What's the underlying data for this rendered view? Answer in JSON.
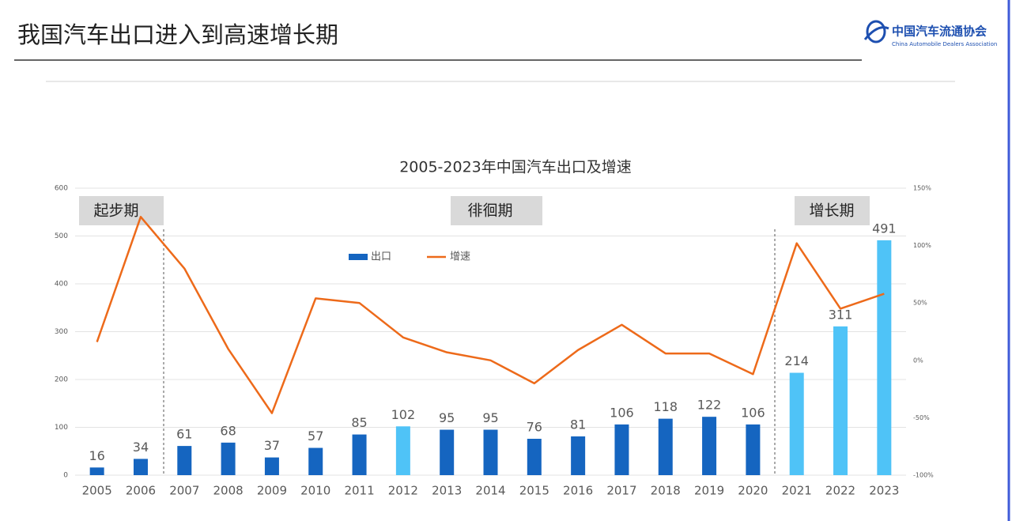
{
  "header": {
    "title": "我国汽车出口进入到高速增长期",
    "logo_cn": "中国汽车流通协会",
    "logo_en": "China Automobile Dealers Association"
  },
  "chart_data": {
    "type": "bar-line",
    "title": "2005-2023年中国汽车出口及增速",
    "categories": [
      "2005",
      "2006",
      "2007",
      "2008",
      "2009",
      "2010",
      "2011",
      "2012",
      "2013",
      "2014",
      "2015",
      "2016",
      "2017",
      "2018",
      "2019",
      "2020",
      "2021",
      "2022",
      "2023"
    ],
    "series": [
      {
        "name": "出口",
        "type": "bar",
        "color": "#1565c0",
        "bar_colors": [
          "#1565c0",
          "#1565c0",
          "#1565c0",
          "#1565c0",
          "#1565c0",
          "#1565c0",
          "#1565c0",
          "#4fc3f7",
          "#1565c0",
          "#1565c0",
          "#1565c0",
          "#1565c0",
          "#1565c0",
          "#1565c0",
          "#1565c0",
          "#1565c0",
          "#4fc3f7",
          "#4fc3f7",
          "#4fc3f7"
        ],
        "values": [
          16,
          34,
          61,
          68,
          37,
          57,
          85,
          102,
          95,
          95,
          76,
          81,
          106,
          118,
          122,
          106,
          214,
          311,
          491
        ]
      },
      {
        "name": "增速",
        "type": "line",
        "color": "#ed6a1a",
        "axis": "y2",
        "values": [
          16,
          125,
          80,
          10,
          -46,
          54,
          50,
          20,
          7,
          0,
          -20,
          9,
          31,
          6,
          6,
          -12,
          102,
          45,
          58
        ]
      }
    ],
    "annotations": [
      "起步期",
      "徘徊期",
      "增长期"
    ],
    "ylim": [
      0,
      600
    ],
    "yticks": [
      0,
      100,
      200,
      300,
      400,
      500,
      600
    ],
    "y2lim": [
      -100,
      150
    ],
    "y2ticks": [
      {
        "value": -100,
        "label": "-100%"
      },
      {
        "value": -50,
        "label": "-50%"
      },
      {
        "value": 0,
        "label": "0%"
      },
      {
        "value": 50,
        "label": "50%"
      },
      {
        "value": 100,
        "label": "100%"
      },
      {
        "value": 150,
        "label": "150%"
      }
    ],
    "grid": true
  }
}
